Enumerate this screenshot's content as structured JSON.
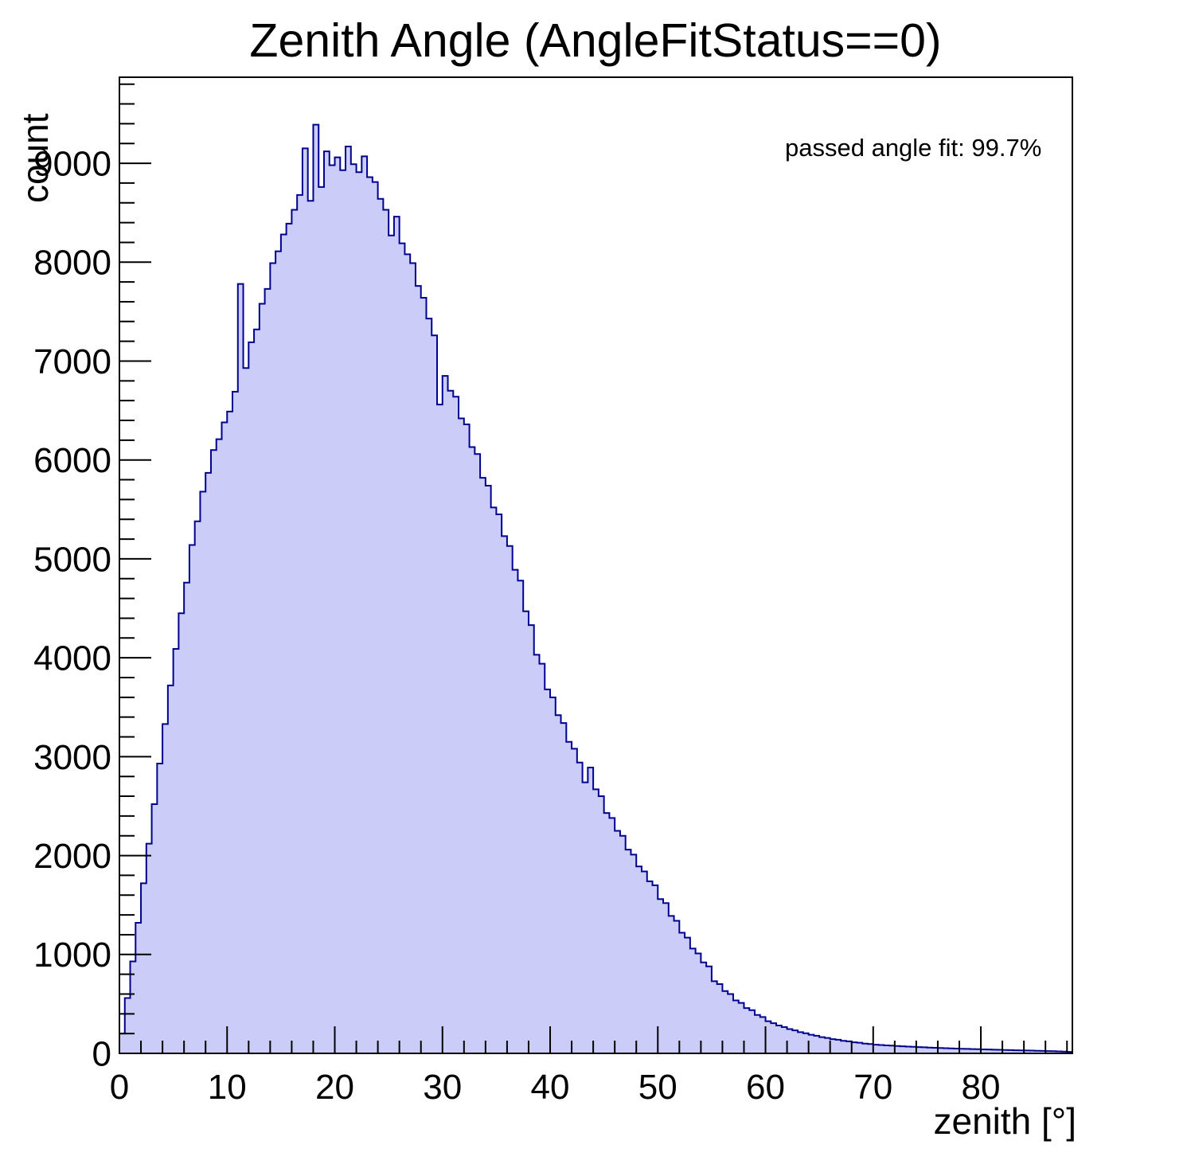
{
  "title": "Zenith Angle (AngleFitStatus==0)",
  "annotation": "passed angle fit: 99.7%",
  "axes": {
    "x_title": "zenith [°]",
    "y_title": "count",
    "x_tick_labels": [
      "0",
      "10",
      "20",
      "30",
      "40",
      "50",
      "60",
      "70",
      "80"
    ],
    "y_tick_labels": [
      "0",
      "1000",
      "2000",
      "3000",
      "4000",
      "5000",
      "6000",
      "7000",
      "8000",
      "9000"
    ]
  },
  "colors": {
    "histogram_fill": "#ccccf8",
    "histogram_line": "#00008f",
    "frame": "#000000",
    "text": "#000000",
    "background": "#ffffff"
  },
  "chart_data": {
    "type": "bar",
    "subtype": "histogram-step-filled",
    "title": "Zenith Angle (AngleFitStatus==0)",
    "xlabel": "zenith [°]",
    "ylabel": "count",
    "xlim": [
      0,
      88.5
    ],
    "ylim": [
      0,
      9870
    ],
    "grid": false,
    "legend_position": "none",
    "annotation": "passed angle fit: 99.7%",
    "x_major_ticks": [
      0,
      10,
      20,
      30,
      40,
      50,
      60,
      70,
      80
    ],
    "x_minor_step": 2,
    "y_major_ticks": [
      0,
      1000,
      2000,
      3000,
      4000,
      5000,
      6000,
      7000,
      8000,
      9000
    ],
    "y_minor_step": 200,
    "bins_start": 0,
    "bin_width": 0.5,
    "peak_value": 9390,
    "peak_x": 18.25,
    "values": [
      200,
      560,
      930,
      1320,
      1720,
      2120,
      2520,
      2930,
      3330,
      3720,
      4090,
      4450,
      4760,
      5140,
      5380,
      5680,
      5870,
      6100,
      6210,
      6380,
      6490,
      6690,
      7780,
      6930,
      7190,
      7320,
      7580,
      7730,
      7990,
      8110,
      8280,
      8390,
      8530,
      8680,
      9150,
      8620,
      9390,
      8760,
      9120,
      8980,
      9060,
      8930,
      9170,
      8990,
      8910,
      9070,
      8860,
      8810,
      8640,
      8530,
      8270,
      8460,
      8190,
      8080,
      7990,
      7760,
      7640,
      7430,
      7260,
      6560,
      6850,
      6700,
      6640,
      6420,
      6360,
      6130,
      6060,
      5820,
      5740,
      5520,
      5450,
      5230,
      5130,
      4890,
      4780,
      4470,
      4330,
      4030,
      3940,
      3680,
      3600,
      3420,
      3340,
      3150,
      3080,
      2940,
      2740,
      2890,
      2670,
      2600,
      2430,
      2380,
      2250,
      2200,
      2060,
      2010,
      1890,
      1840,
      1740,
      1700,
      1560,
      1520,
      1390,
      1340,
      1220,
      1170,
      1060,
      1010,
      920,
      880,
      730,
      700,
      630,
      600,
      535,
      510,
      458,
      437,
      388,
      367,
      325,
      305,
      282,
      266,
      246,
      232,
      214,
      203,
      188,
      178,
      164,
      156,
      144,
      138,
      127,
      122,
      112,
      108,
      99,
      95,
      88,
      85,
      81,
      78,
      74,
      71,
      68,
      66,
      63,
      61,
      58,
      56,
      54,
      52,
      50,
      48,
      46,
      45,
      43,
      42,
      40,
      39,
      37,
      36,
      34,
      33,
      31,
      30,
      29,
      28,
      26,
      25,
      23,
      22,
      20,
      18,
      15
    ]
  }
}
